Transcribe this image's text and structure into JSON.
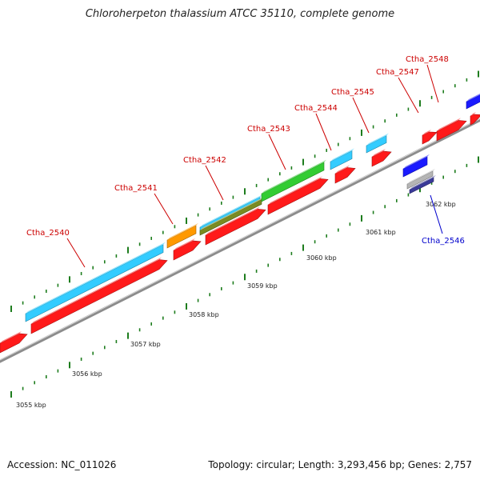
{
  "title": "Chloroherpeton thalassium ATCC 35110, complete genome",
  "footer": {
    "accession": "Accession: NC_011026",
    "stats": "Topology: circular; Length: 3,293,456 bp; Genes: 2,757"
  },
  "colors": {
    "backbone": "#8c8c8c",
    "tick": "#1e7d1e",
    "forward_label": "#cc0000",
    "reverse_label": "#0000cc",
    "cds_red": "#ff1a1a",
    "cyan": "#33ccff",
    "orange": "#ff9900",
    "green": "#33cc33",
    "olive": "#7a8c22",
    "blue": "#1a1aff",
    "indigo": "#3a3a99",
    "gray": "#b5b5b5"
  },
  "scale_labels": [
    "3055 kbp",
    "3056 kbp",
    "3057 kbp",
    "3058 kbp",
    "3059 kbp",
    "3060 kbp",
    "3061 kbp",
    "3062 kbp"
  ],
  "gene_labels": [
    {
      "id": "ctha-2540",
      "text": "Ctha_2540",
      "strand": "forward"
    },
    {
      "id": "ctha-2541",
      "text": "Ctha_2541",
      "strand": "forward"
    },
    {
      "id": "ctha-2542",
      "text": "Ctha_2542",
      "strand": "forward"
    },
    {
      "id": "ctha-2543",
      "text": "Ctha_2543",
      "strand": "forward"
    },
    {
      "id": "ctha-2544",
      "text": "Ctha_2544",
      "strand": "forward"
    },
    {
      "id": "ctha-2545",
      "text": "Ctha_2545",
      "strand": "forward"
    },
    {
      "id": "ctha-2547",
      "text": "Ctha_2547",
      "strand": "forward"
    },
    {
      "id": "ctha-2548",
      "text": "Ctha_2548",
      "strand": "forward"
    },
    {
      "id": "ctha-2546",
      "text": "Ctha_2546",
      "strand": "reverse"
    }
  ]
}
